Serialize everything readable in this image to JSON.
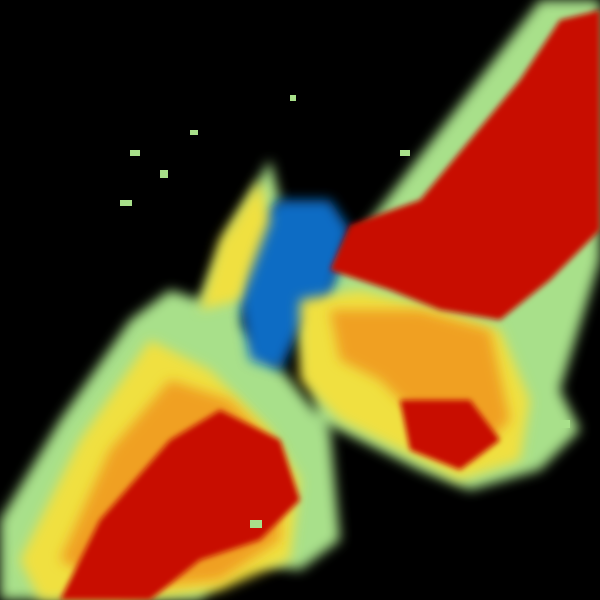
{
  "image": {
    "kind": "weather-radar-sweep",
    "background": "#000000",
    "palette": {
      "blue": "#0a6cc4",
      "cyan": "#5fc8c0",
      "light_green": "#a8e08a",
      "yellow": "#f0e040",
      "orange": "#f0a020",
      "dark_orange": "#e06010",
      "red": "#c80a00",
      "dark_red": "#b00000"
    }
  }
}
